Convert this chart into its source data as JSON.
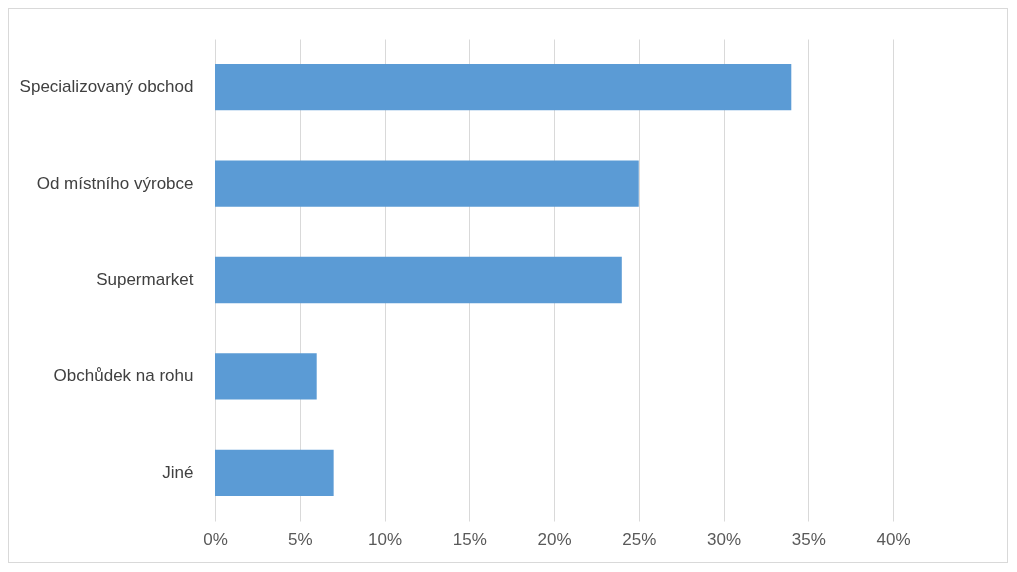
{
  "chart_data": {
    "type": "bar",
    "orientation": "horizontal",
    "categories": [
      "Specializovaný obchod",
      "Od místního výrobce",
      "Supermarket",
      "Obchůdek na rohu",
      "Jiné"
    ],
    "values": [
      34,
      25,
      24,
      6,
      7
    ],
    "color": "#5b9bd5",
    "xlim": [
      0,
      40
    ],
    "xticks": [
      {
        "value": 0,
        "label": "0%"
      },
      {
        "value": 5,
        "label": "5%"
      },
      {
        "value": 10,
        "label": "10%"
      },
      {
        "value": 15,
        "label": "15%"
      },
      {
        "value": 20,
        "label": "20%"
      },
      {
        "value": 25,
        "label": "25%"
      },
      {
        "value": 30,
        "label": "30%"
      },
      {
        "value": 35,
        "label": "35%"
      },
      {
        "value": 40,
        "label": "40%"
      }
    ],
    "grid": "x"
  }
}
